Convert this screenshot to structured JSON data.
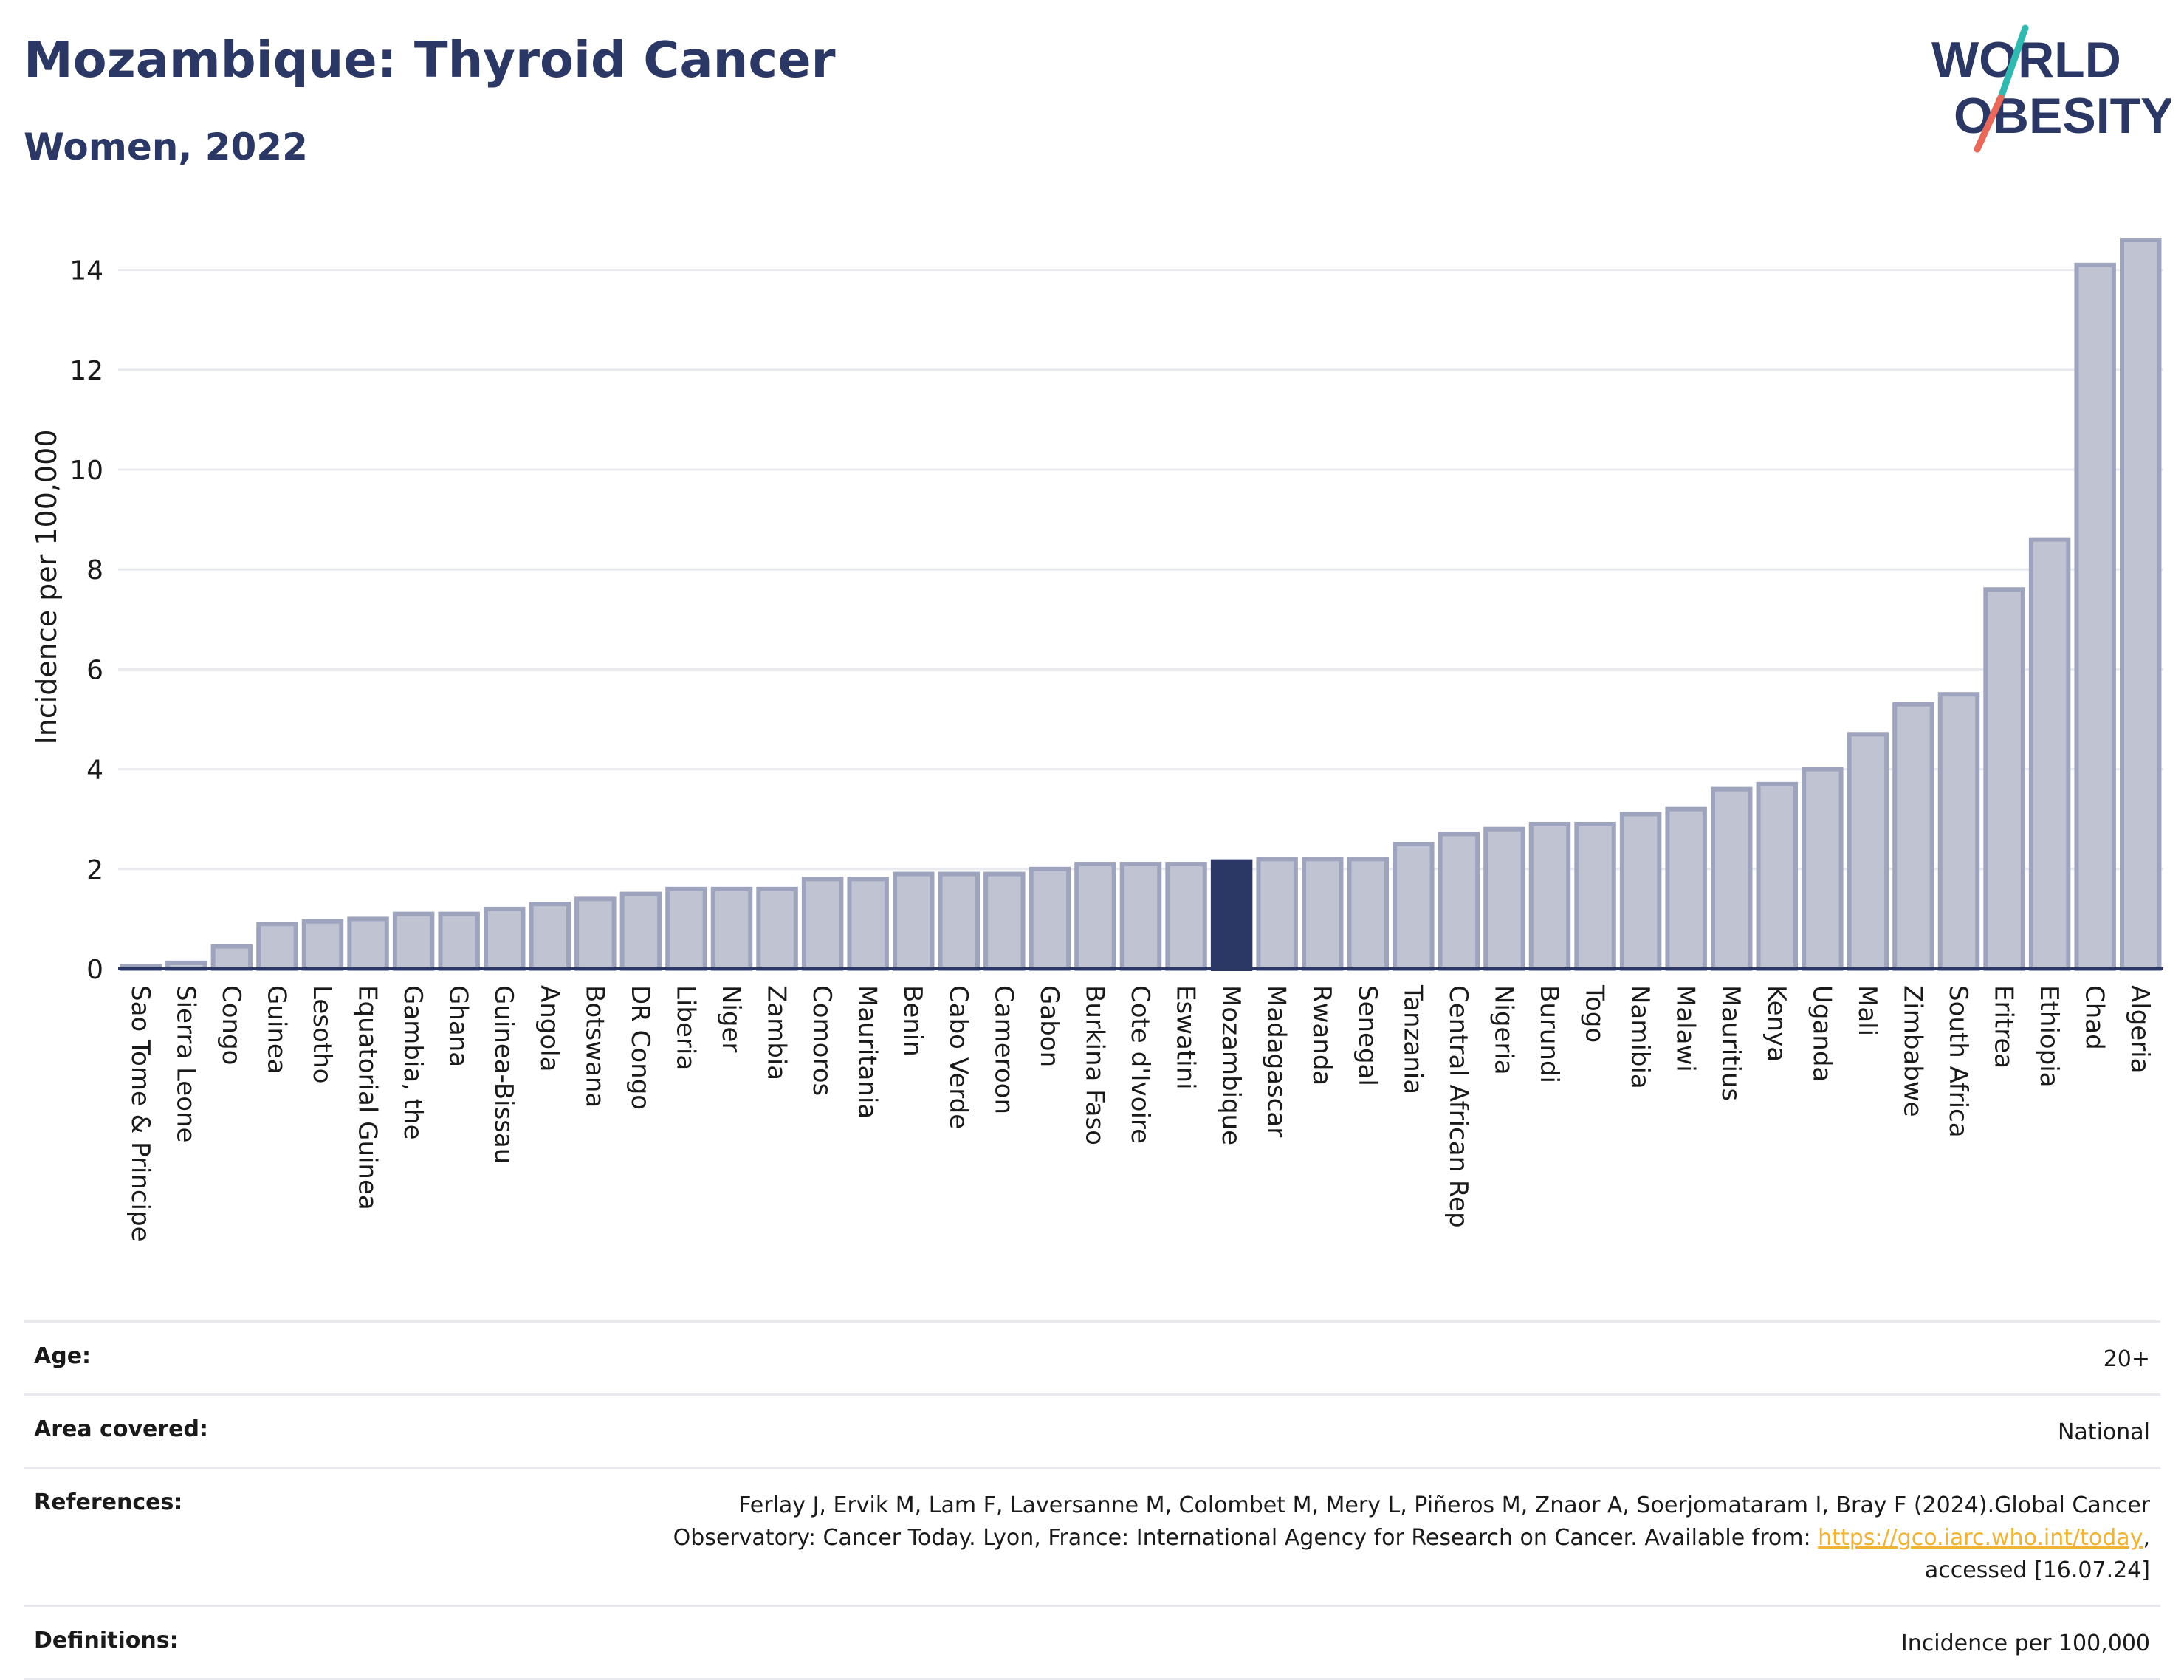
{
  "header": {
    "title": "Mozambique: Thyroid Cancer",
    "subtitle": "Women, 2022"
  },
  "logo": {
    "line1": "WORLD",
    "line2": "OBESITY",
    "colors": {
      "text": "#2b3764",
      "slash_top": "#2fb9b1",
      "slash_bottom": "#e8685a"
    }
  },
  "colors": {
    "bar_fill": "#bfc3d2",
    "bar_stroke": "#9ea4bd",
    "highlight": "#2b3764",
    "axis": "#2b3764",
    "grid": "#e8eaf0",
    "link": "#f2b233"
  },
  "chart_data": {
    "type": "bar",
    "title": "",
    "xlabel": "",
    "ylabel": "Incidence per 100,000",
    "ylim": [
      0,
      15
    ],
    "yticks": [
      0,
      2,
      4,
      6,
      8,
      10,
      12,
      14
    ],
    "grid": true,
    "highlight": "Mozambique",
    "categories": [
      "Sao Tome & Principe",
      "Sierra Leone",
      "Congo",
      "Guinea",
      "Lesotho",
      "Equatorial Guinea",
      "Gambia, the",
      "Ghana",
      "Guinea-Bissau",
      "Angola",
      "Botswana",
      "DR Congo",
      "Liberia",
      "Niger",
      "Zambia",
      "Comoros",
      "Mauritania",
      "Benin",
      "Cabo Verde",
      "Cameroon",
      "Gabon",
      "Burkina Faso",
      "Cote d'Ivoire",
      "Eswatini",
      "Mozambique",
      "Madagascar",
      "Rwanda",
      "Senegal",
      "Tanzania",
      "Central African Rep",
      "Nigeria",
      "Burundi",
      "Togo",
      "Namibia",
      "Malawi",
      "Mauritius",
      "Kenya",
      "Uganda",
      "Mali",
      "Zimbabwe",
      "South Africa",
      "Eritrea",
      "Ethiopia",
      "Chad",
      "Algeria"
    ],
    "values": [
      0.05,
      0.12,
      0.45,
      0.9,
      0.95,
      1.0,
      1.1,
      1.1,
      1.2,
      1.3,
      1.4,
      1.5,
      1.6,
      1.6,
      1.6,
      1.8,
      1.8,
      1.9,
      1.9,
      1.9,
      2.0,
      2.1,
      2.1,
      2.1,
      2.15,
      2.2,
      2.2,
      2.2,
      2.5,
      2.7,
      2.8,
      2.9,
      2.9,
      3.1,
      3.2,
      3.6,
      3.7,
      4.0,
      4.7,
      5.3,
      5.5,
      7.6,
      8.6,
      14.1,
      14.6
    ]
  },
  "meta": {
    "age_label": "Age:",
    "age_value": "20+",
    "area_label": "Area covered:",
    "area_value": "National",
    "references_label": "References:",
    "references_line1": "Ferlay J, Ervik M, Lam F, Laversanne M, Colombet M, Mery L, Piñeros M, Znaor A, Soerjomataram I, Bray F (2024).Global Cancer",
    "references_line2": "Observatory: Cancer Today. Lyon, France: International Agency for Research on Cancer. Available from: ",
    "references_link": "https://gco.iarc.who.int/today",
    "references_line2_end": ",",
    "references_line3": "accessed [16.07.24]",
    "definitions_label": "Definitions:",
    "definitions_value": "Incidence per 100,000"
  }
}
